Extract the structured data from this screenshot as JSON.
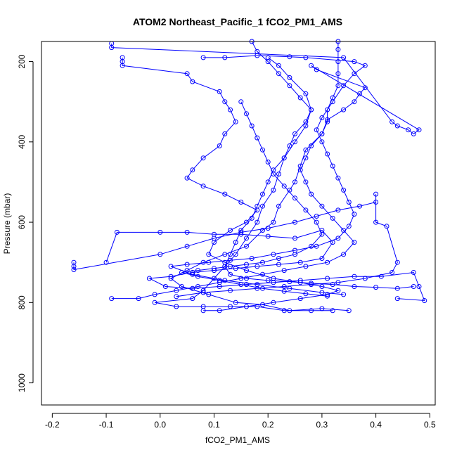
{
  "chart_data": {
    "type": "scatter",
    "title": "ATOM2 Northeast_Pacific_1 fCO2_PM1_AMS",
    "xlabel": "fCO2_PM1_AMS",
    "ylabel": "Pressure (mbar)",
    "xlim": [
      -0.22,
      0.51
    ],
    "ylim": [
      1055,
      150
    ],
    "y_inverted": true,
    "x_ticks": [
      -0.2,
      -0.1,
      0.0,
      0.1,
      0.2,
      0.3,
      0.4,
      0.5
    ],
    "x_tick_labels": [
      "-0.2",
      "-0.1",
      "0.0",
      "0.1",
      "0.2",
      "0.3",
      "0.4",
      "0.5"
    ],
    "y_ticks": [
      200,
      400,
      600,
      800,
      1000
    ],
    "y_tick_labels": [
      "200",
      "400",
      "600",
      "800",
      "1000"
    ],
    "grid": false,
    "legend": "none",
    "series_color": "#0000ff",
    "marker": "open-circle",
    "connected": true,
    "series": [
      {
        "points": [
          [
            -0.09,
            155
          ],
          [
            -0.09,
            165
          ],
          [
            0.34,
            190
          ],
          [
            0.43,
            350
          ],
          [
            0.44,
            360
          ],
          [
            0.46,
            370
          ],
          [
            0.47,
            380
          ],
          [
            0.48,
            370
          ],
          [
            0.28,
            210
          ],
          [
            0.29,
            220
          ],
          [
            0.38,
            265
          ],
          [
            0.37,
            280
          ],
          [
            0.36,
            300
          ],
          [
            0.34,
            320
          ],
          [
            0.31,
            345
          ],
          [
            0.3,
            380
          ],
          [
            0.27,
            420
          ],
          [
            0.26,
            460
          ],
          [
            0.25,
            500
          ],
          [
            0.24,
            520
          ],
          [
            0.22,
            560
          ],
          [
            0.21,
            600
          ],
          [
            0.19,
            620
          ],
          [
            0.16,
            660
          ],
          [
            0.12,
            680
          ],
          [
            0.08,
            700
          ],
          [
            0.05,
            720
          ],
          [
            0.02,
            740
          ],
          [
            0.04,
            760
          ],
          [
            0.09,
            780
          ],
          [
            0.14,
            800
          ],
          [
            0.19,
            805
          ],
          [
            0.24,
            820
          ],
          [
            0.3,
            815
          ],
          [
            0.35,
            820
          ]
        ]
      },
      {
        "points": [
          [
            -0.07,
            190
          ],
          [
            -0.07,
            200
          ],
          [
            -0.07,
            210
          ],
          [
            0.05,
            230
          ],
          [
            0.06,
            250
          ],
          [
            0.11,
            275
          ],
          [
            0.12,
            300
          ],
          [
            0.13,
            320
          ],
          [
            0.14,
            350
          ],
          [
            0.12,
            380
          ],
          [
            0.11,
            410
          ],
          [
            0.08,
            440
          ],
          [
            0.06,
            470
          ],
          [
            0.05,
            490
          ],
          [
            0.08,
            510
          ],
          [
            0.12,
            530
          ],
          [
            0.15,
            550
          ],
          [
            0.18,
            570
          ],
          [
            0.16,
            600
          ],
          [
            0.13,
            620
          ],
          [
            0.1,
            650
          ],
          [
            0.09,
            680
          ],
          [
            0.12,
            700
          ],
          [
            0.16,
            720
          ],
          [
            0.21,
            740
          ],
          [
            0.26,
            750
          ],
          [
            0.3,
            760
          ],
          [
            0.33,
            770
          ],
          [
            0.31,
            780
          ],
          [
            0.26,
            790
          ],
          [
            0.21,
            800
          ],
          [
            0.16,
            810
          ],
          [
            0.11,
            820
          ],
          [
            0.08,
            820
          ]
        ]
      },
      {
        "points": [
          [
            -0.16,
            700
          ],
          [
            -0.16,
            710
          ],
          [
            -0.16,
            718
          ],
          [
            0.0,
            680
          ],
          [
            0.05,
            660
          ],
          [
            0.1,
            640
          ],
          [
            0.15,
            625
          ],
          [
            0.2,
            615
          ],
          [
            0.25,
            600
          ],
          [
            0.29,
            585
          ],
          [
            0.33,
            570
          ],
          [
            0.37,
            560
          ],
          [
            0.4,
            550
          ],
          [
            0.4,
            530
          ],
          [
            0.4,
            600
          ],
          [
            0.42,
            610
          ],
          [
            0.44,
            700
          ],
          [
            0.43,
            725
          ],
          [
            0.38,
            740
          ],
          [
            0.33,
            750
          ],
          [
            0.28,
            755
          ],
          [
            0.23,
            760
          ],
          [
            0.18,
            765
          ],
          [
            0.13,
            770
          ],
          [
            0.08,
            775
          ],
          [
            0.03,
            785
          ]
        ]
      },
      {
        "points": [
          [
            -0.1,
            700
          ],
          [
            -0.08,
            625
          ],
          [
            0.0,
            625
          ],
          [
            0.05,
            625
          ],
          [
            0.1,
            630
          ],
          [
            0.15,
            630
          ],
          [
            0.2,
            635
          ],
          [
            0.25,
            640
          ],
          [
            0.3,
            620
          ],
          [
            0.32,
            650
          ],
          [
            0.3,
            690
          ],
          [
            0.26,
            700
          ],
          [
            0.22,
            705
          ],
          [
            0.18,
            710
          ],
          [
            0.14,
            715
          ],
          [
            0.1,
            720
          ],
          [
            0.06,
            725
          ],
          [
            0.02,
            735
          ],
          [
            -0.02,
            740
          ],
          [
            0.01,
            760
          ],
          [
            0.06,
            765
          ],
          [
            0.11,
            760
          ],
          [
            0.16,
            755
          ],
          [
            0.21,
            750
          ],
          [
            0.26,
            745
          ],
          [
            0.31,
            740
          ],
          [
            0.36,
            735
          ],
          [
            0.41,
            735
          ],
          [
            0.47,
            725
          ],
          [
            0.48,
            760
          ],
          [
            0.49,
            795
          ],
          [
            0.44,
            790
          ]
        ]
      },
      {
        "points": [
          [
            0.2,
            190
          ],
          [
            0.22,
            210
          ],
          [
            0.24,
            240
          ],
          [
            0.27,
            280
          ],
          [
            0.28,
            320
          ],
          [
            0.27,
            360
          ],
          [
            0.25,
            400
          ],
          [
            0.23,
            440
          ],
          [
            0.22,
            480
          ],
          [
            0.21,
            520
          ],
          [
            0.19,
            560
          ],
          [
            0.18,
            600
          ],
          [
            0.16,
            640
          ],
          [
            0.14,
            680
          ],
          [
            0.12,
            710
          ],
          [
            0.1,
            740
          ],
          [
            0.08,
            770
          ],
          [
            0.06,
            790
          ],
          [
            -0.01,
            800
          ],
          [
            0.03,
            810
          ],
          [
            0.08,
            810
          ],
          [
            0.13,
            810
          ],
          [
            0.18,
            810
          ],
          [
            0.23,
            820
          ],
          [
            0.28,
            820
          ],
          [
            0.32,
            820
          ]
        ]
      },
      {
        "points": [
          [
            0.33,
            150
          ],
          [
            0.33,
            170
          ],
          [
            0.33,
            200
          ],
          [
            0.33,
            230
          ],
          [
            0.33,
            260
          ],
          [
            0.32,
            290
          ],
          [
            0.31,
            320
          ],
          [
            0.31,
            350
          ],
          [
            0.3,
            380
          ],
          [
            0.28,
            410
          ],
          [
            0.27,
            440
          ],
          [
            0.26,
            470
          ],
          [
            0.27,
            500
          ],
          [
            0.28,
            530
          ],
          [
            0.3,
            560
          ],
          [
            0.32,
            590
          ],
          [
            0.34,
            620
          ],
          [
            0.36,
            650
          ],
          [
            0.34,
            680
          ],
          [
            0.31,
            700
          ],
          [
            0.27,
            710
          ],
          [
            0.23,
            720
          ],
          [
            0.19,
            730
          ],
          [
            0.15,
            740
          ],
          [
            0.11,
            750
          ],
          [
            0.07,
            760
          ],
          [
            0.03,
            770
          ],
          [
            -0.01,
            780
          ],
          [
            -0.04,
            790
          ],
          [
            -0.09,
            790
          ]
        ]
      },
      {
        "points": [
          [
            0.17,
            150
          ],
          [
            0.18,
            175
          ],
          [
            0.2,
            200
          ],
          [
            0.22,
            230
          ],
          [
            0.24,
            260
          ],
          [
            0.26,
            290
          ],
          [
            0.28,
            320
          ],
          [
            0.27,
            350
          ],
          [
            0.25,
            380
          ],
          [
            0.24,
            410
          ],
          [
            0.23,
            440
          ],
          [
            0.21,
            470
          ],
          [
            0.2,
            500
          ],
          [
            0.19,
            530
          ],
          [
            0.18,
            560
          ],
          [
            0.17,
            590
          ],
          [
            0.15,
            620
          ],
          [
            0.14,
            650
          ],
          [
            0.13,
            680
          ],
          [
            0.12,
            710
          ],
          [
            0.13,
            730
          ],
          [
            0.16,
            740
          ],
          [
            0.2,
            745
          ],
          [
            0.24,
            748
          ],
          [
            0.28,
            752
          ],
          [
            0.32,
            755
          ],
          [
            0.36,
            760
          ],
          [
            0.4,
            762
          ],
          [
            0.44,
            765
          ],
          [
            0.47,
            760
          ]
        ]
      },
      {
        "points": [
          [
            0.08,
            190
          ],
          [
            0.12,
            190
          ],
          [
            0.18,
            185
          ],
          [
            0.24,
            188
          ],
          [
            0.27,
            190
          ],
          [
            0.36,
            200
          ],
          [
            0.38,
            210
          ],
          [
            0.36,
            230
          ],
          [
            0.34,
            260
          ],
          [
            0.32,
            300
          ],
          [
            0.3,
            340
          ],
          [
            0.29,
            370
          ],
          [
            0.3,
            400
          ],
          [
            0.31,
            430
          ],
          [
            0.32,
            460
          ],
          [
            0.33,
            490
          ],
          [
            0.34,
            520
          ],
          [
            0.35,
            550
          ],
          [
            0.36,
            580
          ],
          [
            0.35,
            610
          ],
          [
            0.33,
            640
          ],
          [
            0.29,
            660
          ],
          [
            0.25,
            670
          ],
          [
            0.21,
            680
          ],
          [
            0.17,
            690
          ],
          [
            0.13,
            695
          ],
          [
            0.09,
            700
          ],
          [
            0.05,
            705
          ],
          [
            0.02,
            710
          ],
          [
            0.06,
            730
          ],
          [
            0.12,
            745
          ],
          [
            0.18,
            755
          ],
          [
            0.24,
            765
          ],
          [
            0.3,
            775
          ],
          [
            0.34,
            780
          ]
        ]
      },
      {
        "points": [
          [
            0.15,
            300
          ],
          [
            0.16,
            330
          ],
          [
            0.17,
            360
          ],
          [
            0.18,
            390
          ],
          [
            0.19,
            420
          ],
          [
            0.2,
            450
          ],
          [
            0.21,
            480
          ],
          [
            0.23,
            510
          ],
          [
            0.25,
            540
          ],
          [
            0.27,
            570
          ],
          [
            0.29,
            600
          ],
          [
            0.3,
            630
          ],
          [
            0.28,
            660
          ],
          [
            0.25,
            680
          ],
          [
            0.22,
            690
          ],
          [
            0.19,
            700
          ],
          [
            0.16,
            705
          ],
          [
            0.13,
            710
          ],
          [
            0.1,
            715
          ],
          [
            0.07,
            720
          ],
          [
            0.04,
            725
          ],
          [
            0.07,
            735
          ],
          [
            0.11,
            745
          ],
          [
            0.15,
            755
          ],
          [
            0.19,
            765
          ],
          [
            0.23,
            772
          ],
          [
            0.27,
            778
          ],
          [
            0.31,
            784
          ]
        ]
      }
    ]
  }
}
